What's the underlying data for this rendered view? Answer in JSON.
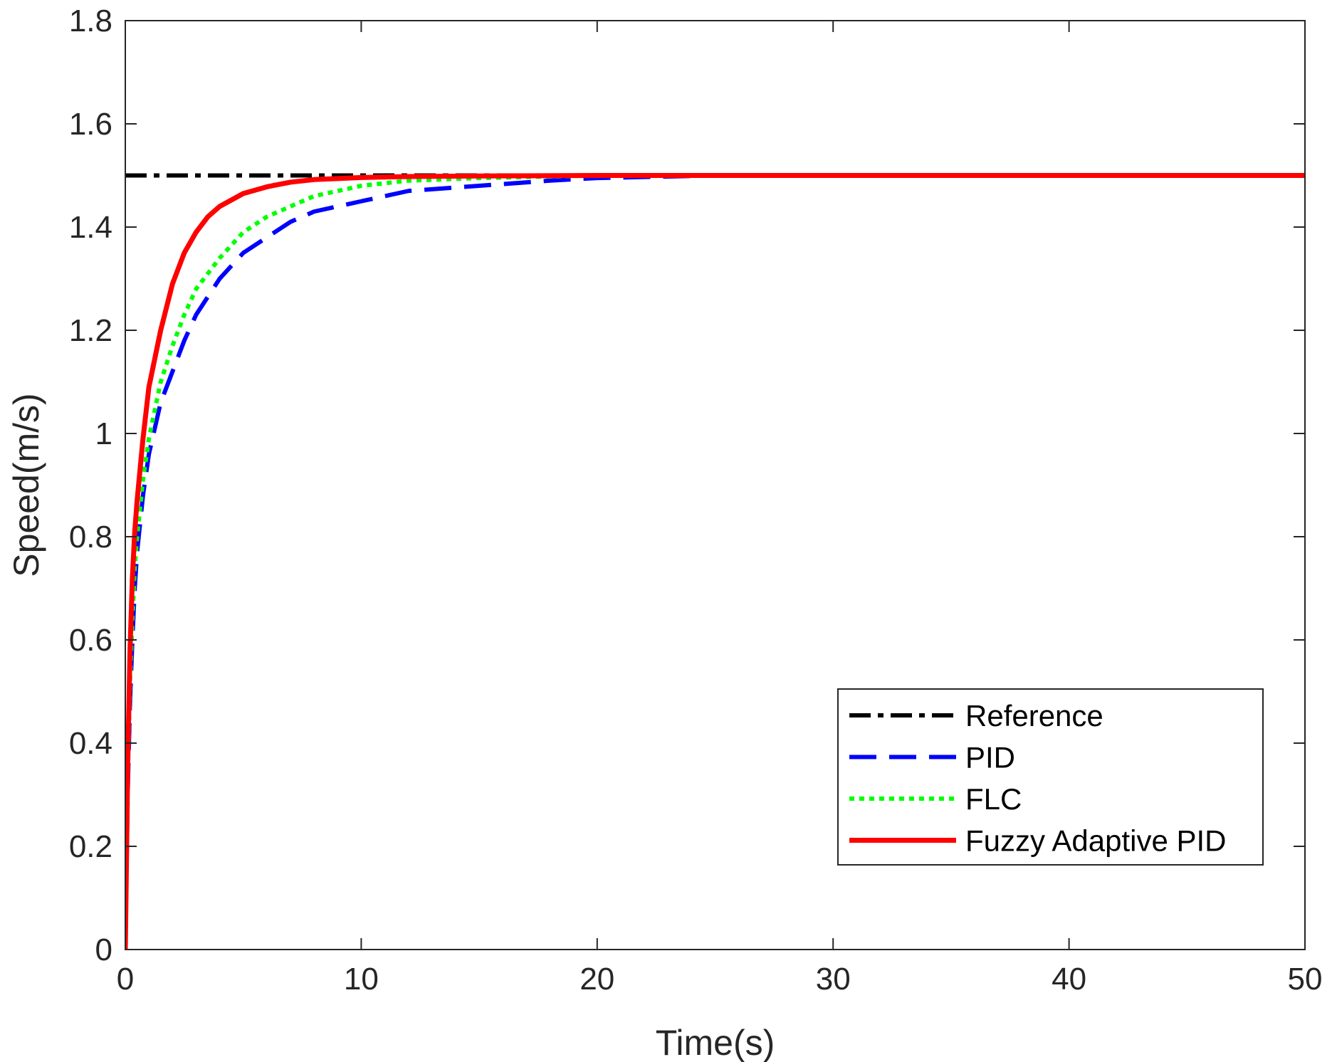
{
  "chart_data": {
    "type": "line",
    "title": "",
    "xlabel": "Time(s)",
    "ylabel": "Speed(m/s)",
    "xlim": [
      0,
      50
    ],
    "ylim": [
      0,
      1.8
    ],
    "xticks": [
      0,
      10,
      20,
      30,
      40,
      50
    ],
    "xtick_labels": [
      "0",
      "10",
      "20",
      "30",
      "40",
      "50"
    ],
    "yticks": [
      0,
      0.2,
      0.4,
      0.6,
      0.8,
      1,
      1.2,
      1.4,
      1.6,
      1.8
    ],
    "ytick_labels": [
      "0",
      "0.2",
      "0.4",
      "0.6",
      "0.8",
      "1",
      "1.2",
      "1.4",
      "1.6",
      "1.8"
    ],
    "grid": false,
    "legend_position": "lower-right",
    "series": [
      {
        "name": "Reference",
        "color": "#000000",
        "style": "dash-dot",
        "x": [
          0,
          50
        ],
        "y": [
          1.5,
          1.5
        ]
      },
      {
        "name": "PID",
        "color": "#0000ff",
        "style": "dashed",
        "x": [
          0,
          0.1,
          0.2,
          0.3,
          0.4,
          0.5,
          0.75,
          1,
          1.5,
          2,
          2.5,
          3,
          4,
          5,
          6,
          7,
          8,
          10,
          12,
          15,
          18,
          20,
          22,
          25,
          30,
          40,
          50
        ],
        "y": [
          0,
          0.3,
          0.48,
          0.6,
          0.7,
          0.77,
          0.88,
          0.96,
          1.06,
          1.12,
          1.18,
          1.23,
          1.3,
          1.35,
          1.38,
          1.41,
          1.43,
          1.45,
          1.47,
          1.48,
          1.49,
          1.495,
          1.497,
          1.5,
          1.5,
          1.5,
          1.5
        ]
      },
      {
        "name": "FLC",
        "color": "#00ff00",
        "style": "dotted",
        "x": [
          0,
          0.1,
          0.2,
          0.3,
          0.4,
          0.5,
          0.75,
          1,
          1.5,
          2,
          2.5,
          3,
          4,
          5,
          6,
          7,
          8,
          10,
          12,
          15,
          18,
          20,
          25,
          30,
          40,
          50
        ],
        "y": [
          0,
          0.32,
          0.52,
          0.64,
          0.74,
          0.8,
          0.91,
          0.99,
          1.1,
          1.17,
          1.23,
          1.28,
          1.34,
          1.39,
          1.42,
          1.44,
          1.46,
          1.48,
          1.49,
          1.495,
          1.498,
          1.5,
          1.5,
          1.5,
          1.5,
          1.5
        ]
      },
      {
        "name": "Fuzzy Adaptive PID",
        "color": "#ff0000",
        "style": "solid",
        "x": [
          0,
          0.1,
          0.2,
          0.3,
          0.4,
          0.5,
          0.75,
          1,
          1.5,
          2,
          2.5,
          3,
          3.5,
          4,
          5,
          6,
          7,
          8,
          10,
          12,
          15,
          20,
          30,
          40,
          50
        ],
        "y": [
          0,
          0.35,
          0.58,
          0.72,
          0.81,
          0.87,
          0.99,
          1.09,
          1.2,
          1.29,
          1.35,
          1.39,
          1.42,
          1.44,
          1.465,
          1.478,
          1.487,
          1.492,
          1.496,
          1.498,
          1.499,
          1.5,
          1.5,
          1.5,
          1.5
        ]
      }
    ]
  }
}
